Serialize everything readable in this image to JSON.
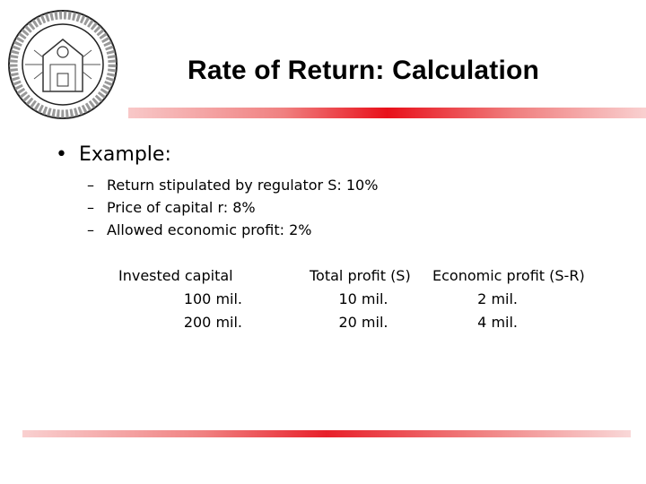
{
  "header": {
    "title": "Rate of Return: Calculation",
    "seal_icon": "university-seal-icon",
    "accent_color": "#e8101a"
  },
  "content": {
    "bullet": "Example:",
    "sub_items": [
      "Return stipulated by regulator S: 10%",
      "Price of capital r: 8%",
      "Allowed economic profit: 2%"
    ]
  },
  "table": {
    "headers": [
      "Invested capital",
      "Total profit (S)",
      "Economic profit (S-R)"
    ],
    "rows": [
      [
        "100 mil.",
        "10 mil.",
        "2 mil."
      ],
      [
        "200 mil.",
        "20 mil.",
        "4 mil."
      ]
    ]
  }
}
